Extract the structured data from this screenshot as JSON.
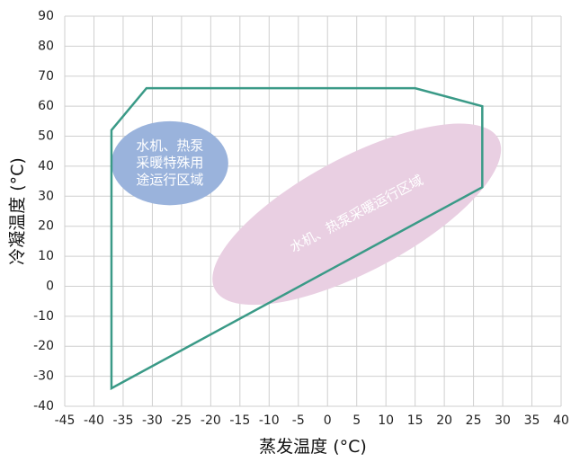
{
  "chart_data": {
    "type": "area",
    "title": "",
    "xlabel": "蒸发温度 (°C)",
    "ylabel": "冷凝温度 (°C)",
    "xlim": [
      -45,
      40
    ],
    "ylim": [
      -40,
      90
    ],
    "xticks": [
      -45,
      -40,
      -35,
      -30,
      -25,
      -20,
      -15,
      -10,
      -5,
      0,
      5,
      10,
      15,
      20,
      25,
      30,
      35,
      40
    ],
    "yticks": [
      -40,
      -30,
      -20,
      -10,
      0,
      10,
      20,
      30,
      40,
      50,
      60,
      70,
      80,
      90
    ],
    "grid": true,
    "envelope": {
      "color": "#3a9a87",
      "points": [
        [
          -37,
          52
        ],
        [
          -31,
          66
        ],
        [
          15,
          66
        ],
        [
          26.5,
          60
        ],
        [
          26.5,
          33
        ],
        [
          -37,
          -34
        ]
      ]
    },
    "zones": [
      {
        "label": "水机、热泵采暖运行区域",
        "color": "#e9cfe2",
        "center": [
          5,
          24
        ],
        "radius_x": 27.5,
        "radius_y": 19,
        "angle_deg": -28
      },
      {
        "label_lines": [
          "水机、热泵",
          "采暖特殊用",
          "途运行区域"
        ],
        "color": "#9ab3dc",
        "center": [
          -27,
          41
        ],
        "radius_x": 10,
        "radius_y": 14,
        "angle_deg": 0
      }
    ]
  }
}
